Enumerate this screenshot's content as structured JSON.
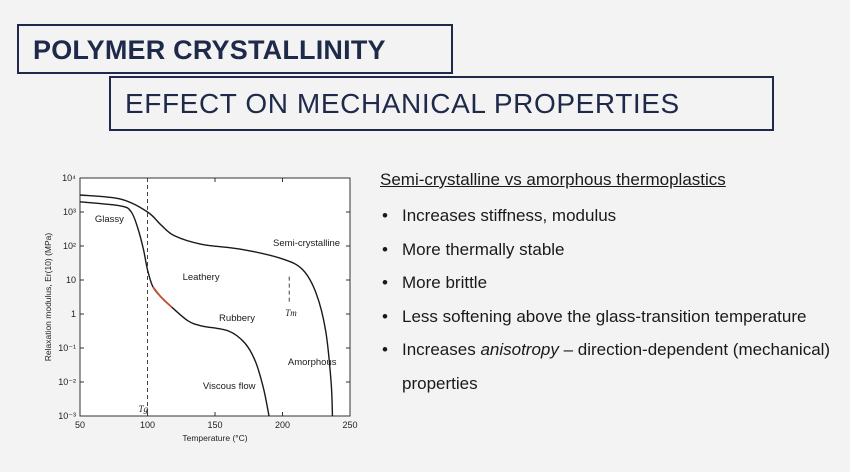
{
  "slide": {
    "title": "POLYMER CRYSTALLINITY",
    "subtitle": "EFFECT ON MECHANICAL PROPERTIES"
  },
  "text_panel": {
    "heading": "Semi-crystalline vs amorphous thermoplastics",
    "bullets": [
      {
        "text": "Increases stiffness, modulus"
      },
      {
        "text": "More thermally stable"
      },
      {
        "text": "More brittle"
      },
      {
        "text": "Less softening above the glass-transition temperature"
      },
      {
        "pre": "Increases ",
        "em": "anisotropy",
        "post": " – direction-dependent (mechanical) properties"
      }
    ]
  },
  "chart_data": {
    "type": "line",
    "xlabel": "Temperature (°C)",
    "ylabel": "Relaxation modulus, Er(10) (MPa)",
    "xlim": [
      50,
      250
    ],
    "ylim_log10": [
      -3,
      4
    ],
    "log_y": true,
    "x_ticks": [
      50,
      100,
      150,
      200,
      250
    ],
    "y_tick_labels": [
      "10⁻³",
      "10⁻²",
      "10⁻¹",
      "1",
      "10",
      "10²",
      "10³",
      "10⁴"
    ],
    "series": [
      {
        "name": "Semi-crystalline",
        "points": [
          [
            50,
            3.5
          ],
          [
            80,
            3.38
          ],
          [
            100,
            3.0
          ],
          [
            110,
            2.62
          ],
          [
            120,
            2.3
          ],
          [
            140,
            2.05
          ],
          [
            170,
            1.9
          ],
          [
            200,
            1.62
          ],
          [
            215,
            1.3
          ],
          [
            225,
            0.6
          ],
          [
            232,
            -0.5
          ],
          [
            236,
            -2.0
          ],
          [
            237,
            -3.0
          ]
        ]
      },
      {
        "name": "Amorphous",
        "points": [
          [
            50,
            3.3
          ],
          [
            80,
            3.18
          ],
          [
            88,
            3.0
          ],
          [
            93,
            2.5
          ],
          [
            97,
            1.9
          ],
          [
            100,
            1.3
          ],
          [
            104,
            0.8
          ],
          [
            110,
            0.5
          ],
          [
            118,
            0.2
          ],
          [
            130,
            -0.2
          ],
          [
            140,
            -0.35
          ],
          [
            160,
            -0.5
          ],
          [
            172,
            -0.85
          ],
          [
            180,
            -1.4
          ],
          [
            186,
            -2.2
          ],
          [
            190,
            -3.0
          ]
        ]
      }
    ],
    "highlight_segment": {
      "color": "#c0522e",
      "x_range": [
        103,
        123
      ]
    },
    "markers": [
      {
        "label": "Tg",
        "x": 100,
        "style": "dashed-full-height"
      },
      {
        "label": "Tm",
        "x": 205,
        "y_range_log10": [
          1.1,
          0.35
        ],
        "style": "dashed-short"
      }
    ],
    "annotations": [
      {
        "text": "Glassy",
        "x": 61,
        "y": 2.7
      },
      {
        "text": "Leathery",
        "x": 126,
        "y": 1.0
      },
      {
        "text": "Rubbery",
        "x": 153,
        "y": -0.2
      },
      {
        "text": "Semi-crystalline",
        "x": 193,
        "y": 2.0
      },
      {
        "text": "Viscous flow",
        "x": 141,
        "y": -2.2
      },
      {
        "text": "Amorphous",
        "x": 204,
        "y": -1.5
      }
    ],
    "colors": {
      "line": "#1a1a1a",
      "axis": "#333333",
      "highlight": "#c0522e"
    }
  }
}
